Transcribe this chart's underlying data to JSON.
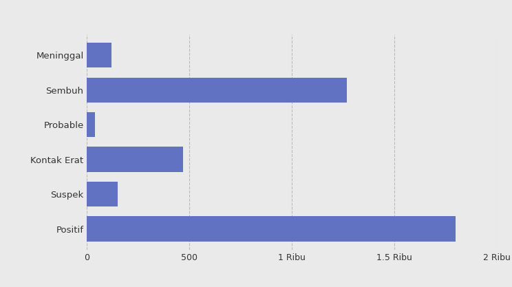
{
  "categories": [
    "Positif",
    "Suspek",
    "Kontak Erat",
    "Probable",
    "Sembuh",
    "Meninggal"
  ],
  "values": [
    1800,
    150,
    470,
    40,
    1270,
    120
  ],
  "bar_color": "#6272c3",
  "background_color": "#eaeaea",
  "plot_background": "#eaeaea",
  "xlim": [
    0,
    2000
  ],
  "xtick_labels": [
    "0",
    "500",
    "1 Ribu",
    "1.5 Ribu",
    "2 Ribu"
  ],
  "xtick_values": [
    0,
    500,
    1000,
    1500,
    2000
  ],
  "grid_color": "#bbbbbb",
  "label_fontsize": 9.5,
  "tick_fontsize": 9.0,
  "bar_height": 0.72
}
